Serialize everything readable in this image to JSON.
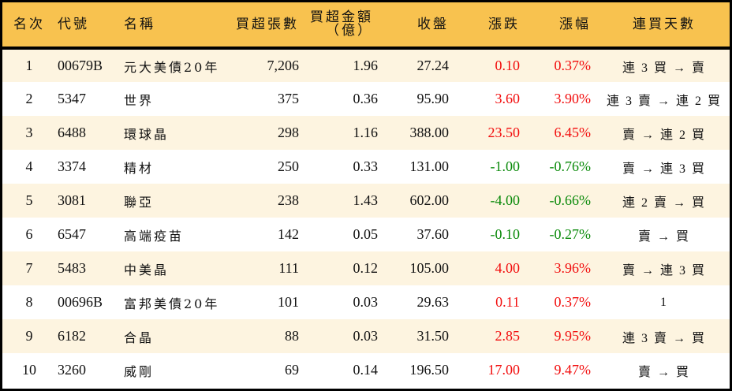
{
  "table": {
    "headers": {
      "rank": "名次",
      "code": "代號",
      "name": "名稱",
      "net_buy_lots": "買超張數",
      "net_buy_amount_line1": "買超金額",
      "net_buy_amount_line2": "（億）",
      "close": "收盤",
      "change": "漲跌",
      "change_pct": "漲幅",
      "consecutive_days": "連買天數"
    },
    "rows": [
      {
        "rank": "1",
        "code": "00679B",
        "name": "元大美債20年",
        "net_buy_lots": "7,206",
        "net_buy_amount": "1.96",
        "close": "27.24",
        "change": "0.10",
        "change_pct": "0.37%",
        "direction": "up",
        "consecutive": "連 3 買 → 賣"
      },
      {
        "rank": "2",
        "code": "5347",
        "name": "世界",
        "net_buy_lots": "375",
        "net_buy_amount": "0.36",
        "close": "95.90",
        "change": "3.60",
        "change_pct": "3.90%",
        "direction": "up",
        "consecutive": "連 3 賣 → 連 2 買"
      },
      {
        "rank": "3",
        "code": "6488",
        "name": "環球晶",
        "net_buy_lots": "298",
        "net_buy_amount": "1.16",
        "close": "388.00",
        "change": "23.50",
        "change_pct": "6.45%",
        "direction": "up",
        "consecutive": "賣 → 連 2 買"
      },
      {
        "rank": "4",
        "code": "3374",
        "name": "精材",
        "net_buy_lots": "250",
        "net_buy_amount": "0.33",
        "close": "131.00",
        "change": "-1.00",
        "change_pct": "-0.76%",
        "direction": "down",
        "consecutive": "賣 → 連 3 買"
      },
      {
        "rank": "5",
        "code": "3081",
        "name": "聯亞",
        "net_buy_lots": "238",
        "net_buy_amount": "1.43",
        "close": "602.00",
        "change": "-4.00",
        "change_pct": "-0.66%",
        "direction": "down",
        "consecutive": "連 2 賣 → 買"
      },
      {
        "rank": "6",
        "code": "6547",
        "name": "高端疫苗",
        "net_buy_lots": "142",
        "net_buy_amount": "0.05",
        "close": "37.60",
        "change": "-0.10",
        "change_pct": "-0.27%",
        "direction": "down",
        "consecutive": "賣 → 買"
      },
      {
        "rank": "7",
        "code": "5483",
        "name": "中美晶",
        "net_buy_lots": "111",
        "net_buy_amount": "0.12",
        "close": "105.00",
        "change": "4.00",
        "change_pct": "3.96%",
        "direction": "up",
        "consecutive": "賣 → 連 3 買"
      },
      {
        "rank": "8",
        "code": "00696B",
        "name": "富邦美債20年",
        "net_buy_lots": "101",
        "net_buy_amount": "0.03",
        "close": "29.63",
        "change": "0.11",
        "change_pct": "0.37%",
        "direction": "up",
        "consecutive": "1"
      },
      {
        "rank": "9",
        "code": "6182",
        "name": "合晶",
        "net_buy_lots": "88",
        "net_buy_amount": "0.03",
        "close": "31.50",
        "change": "2.85",
        "change_pct": "9.95%",
        "direction": "up",
        "consecutive": "連 3 賣 → 買"
      },
      {
        "rank": "10",
        "code": "3260",
        "name": "威剛",
        "net_buy_lots": "69",
        "net_buy_amount": "0.14",
        "close": "196.50",
        "change": "17.00",
        "change_pct": "9.47%",
        "direction": "up",
        "consecutive": "賣 → 買"
      }
    ]
  },
  "colors": {
    "header_bg": "#F8C24F",
    "row_alt_bg": "#FDF4E0",
    "row_bg": "#FFFFFF",
    "up": "#F20D0D",
    "down": "#0B8A0B",
    "border": "#000000"
  }
}
